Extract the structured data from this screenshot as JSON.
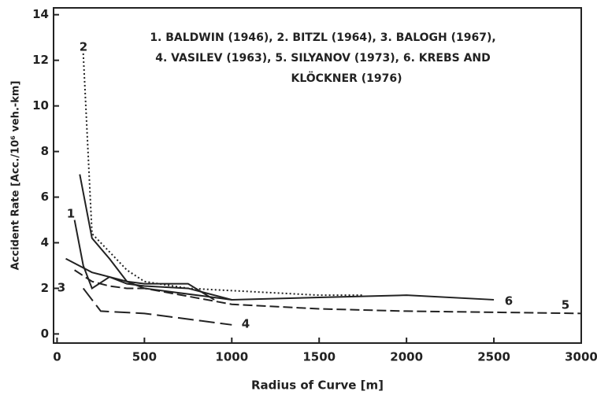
{
  "chart_data": {
    "type": "line",
    "annotation": [
      "1. BALDWIN (1946), 2. BITZL   (1964), 3. BALOGH (1967),",
      "4. VASILEV   (1963), 5. SILYANOV (1973), 6. KREBS AND",
      "KLÖCKNER (1976)"
    ],
    "x_label": "Radius of Curve [m]",
    "y_label": "Accident Rate [Acc./10⁶ veh.-km]",
    "xlim": [
      -20,
      3000
    ],
    "ylim": [
      -0.4,
      14.3
    ],
    "xticks": [
      0,
      500,
      1000,
      1500,
      2000,
      2500,
      3000
    ],
    "yticks": [
      0,
      2,
      4,
      6,
      8,
      10,
      12,
      14
    ],
    "series": [
      {
        "name": "1",
        "color": "#222",
        "style": "solid",
        "x": [
          100,
          150,
          200,
          300,
          400,
          500,
          750,
          1000
        ],
        "values": [
          5.0,
          3.0,
          2.0,
          2.5,
          2.2,
          2.1,
          2.0,
          1.5
        ]
      },
      {
        "name": "2",
        "color": "#222",
        "style": "dotted",
        "x": [
          150,
          200,
          300,
          400,
          500,
          750,
          1000,
          1500,
          1750
        ],
        "values": [
          12.3,
          4.4,
          3.6,
          2.8,
          2.3,
          2.0,
          1.9,
          1.7,
          1.7
        ]
      },
      {
        "name": "3",
        "color": "#222",
        "style": "solid",
        "x": [
          50,
          200,
          300,
          400,
          500,
          750,
          900
        ],
        "values": [
          3.3,
          2.7,
          2.5,
          2.3,
          2.2,
          2.2,
          1.5
        ]
      },
      {
        "name": "4",
        "color": "#222",
        "style": "longdash",
        "x": [
          150,
          250,
          500,
          1000
        ],
        "values": [
          2.0,
          1.0,
          0.9,
          0.4
        ]
      },
      {
        "name": "5",
        "color": "#222",
        "style": "dashed",
        "x": [
          100,
          200,
          300,
          400,
          500,
          1000,
          1500,
          2000,
          2500,
          3000
        ],
        "values": [
          2.8,
          2.3,
          2.1,
          2.0,
          2.0,
          1.3,
          1.1,
          1.0,
          0.95,
          0.9
        ]
      },
      {
        "name": "6",
        "color": "#222",
        "style": "solid",
        "x": [
          130,
          200,
          300,
          400,
          500,
          1000,
          1500,
          2000,
          2500
        ],
        "values": [
          7.0,
          4.2,
          3.3,
          2.3,
          2.0,
          1.5,
          1.6,
          1.7,
          1.5
        ]
      }
    ]
  }
}
